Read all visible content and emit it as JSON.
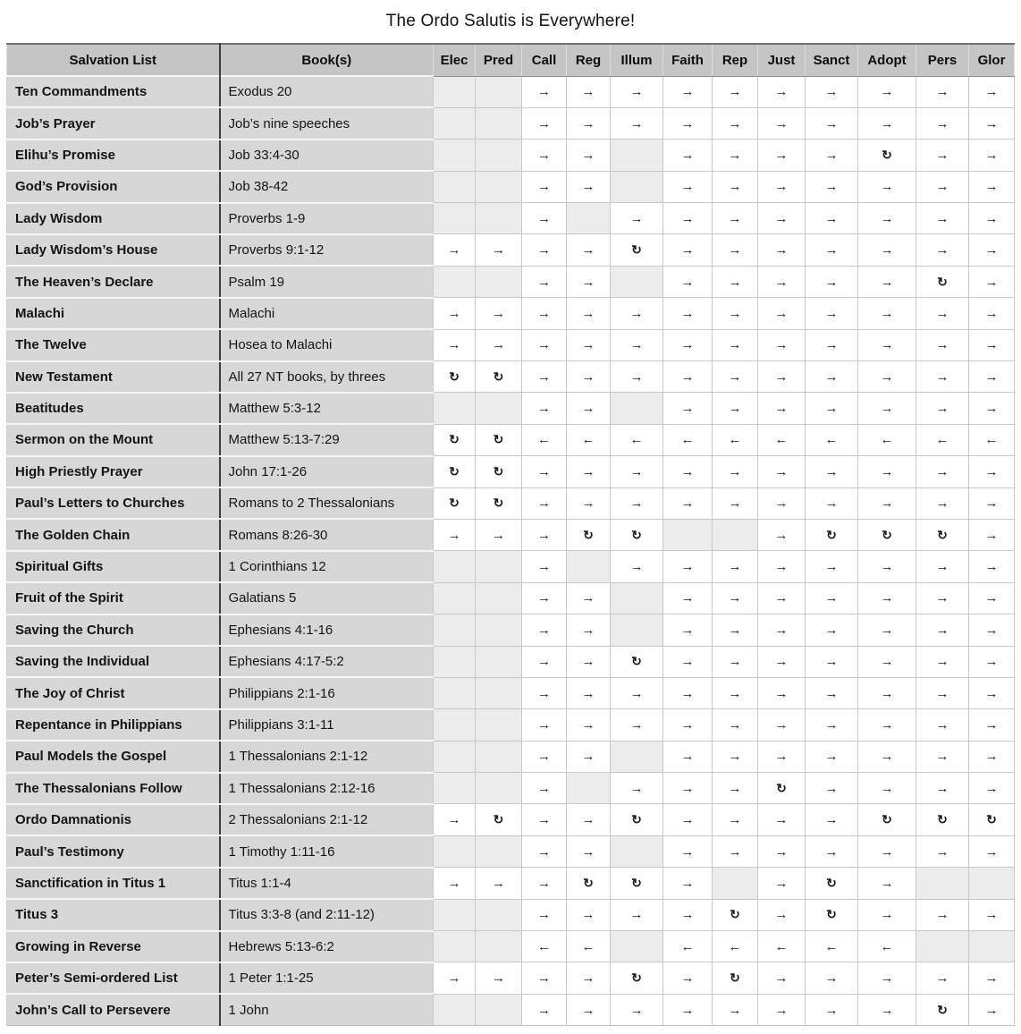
{
  "title": "The Ordo Salutis is Everywhere!",
  "colors": {
    "header_bg": "#c5c5c5",
    "label_bg": "#d7d7d7",
    "empty_cell_bg": "#ececec",
    "filled_cell_bg": "#ffffff",
    "grid_line": "#c8c8c8",
    "dark_divider": "#3d3d3d",
    "text": "#111111"
  },
  "symbols": {
    "forward": "→",
    "backward": "←",
    "loop": "↻",
    "empty": ""
  },
  "table": {
    "headers": [
      "Salvation List",
      "Book(s)",
      "Elec",
      "Pred",
      "Call",
      "Reg",
      "Illum",
      "Faith",
      "Rep",
      "Just",
      "Sanct",
      "Adopt",
      "Pers",
      "Glor"
    ],
    "stage_keys": [
      "elec",
      "pred",
      "call",
      "reg",
      "illum",
      "faith",
      "rep",
      "just",
      "sanct",
      "adopt",
      "pers",
      "glor"
    ],
    "rows": [
      {
        "name": "Ten Commandments",
        "books": "Exodus 20",
        "cells": [
          "",
          "",
          "→",
          "→",
          "→",
          "→",
          "→",
          "→",
          "→",
          "→",
          "→",
          "→"
        ]
      },
      {
        "name": "Job’s Prayer",
        "books": "Job’s nine speeches",
        "cells": [
          "",
          "",
          "→",
          "→",
          "→",
          "→",
          "→",
          "→",
          "→",
          "→",
          "→",
          "→"
        ]
      },
      {
        "name": "Elihu’s Promise",
        "books": "Job 33:4-30",
        "cells": [
          "",
          "",
          "→",
          "→",
          "",
          "→",
          "→",
          "→",
          "→",
          "↻",
          "→",
          "→"
        ]
      },
      {
        "name": "God’s Provision",
        "books": "Job 38-42",
        "cells": [
          "",
          "",
          "→",
          "→",
          "",
          "→",
          "→",
          "→",
          "→",
          "→",
          "→",
          "→"
        ]
      },
      {
        "name": "Lady Wisdom",
        "books": "Proverbs 1-9",
        "cells": [
          "",
          "",
          "→",
          "",
          "→",
          "→",
          "→",
          "→",
          "→",
          "→",
          "→",
          "→"
        ]
      },
      {
        "name": "Lady Wisdom’s House",
        "books": "Proverbs 9:1-12",
        "cells": [
          "→",
          "→",
          "→",
          "→",
          "↻",
          "→",
          "→",
          "→",
          "→",
          "→",
          "→",
          "→"
        ]
      },
      {
        "name": "The Heaven’s Declare",
        "books": "Psalm 19",
        "cells": [
          "",
          "",
          "→",
          "→",
          "",
          "→",
          "→",
          "→",
          "→",
          "→",
          "↻",
          "→"
        ]
      },
      {
        "name": "Malachi",
        "books": "Malachi",
        "cells": [
          "→",
          "→",
          "→",
          "→",
          "→",
          "→",
          "→",
          "→",
          "→",
          "→",
          "→",
          "→"
        ]
      },
      {
        "name": "The Twelve",
        "books": "Hosea to Malachi",
        "cells": [
          "→",
          "→",
          "→",
          "→",
          "→",
          "→",
          "→",
          "→",
          "→",
          "→",
          "→",
          "→"
        ]
      },
      {
        "name": "New Testament",
        "books": "All 27 NT books, by threes",
        "cells": [
          "↻",
          "↻",
          "→",
          "→",
          "→",
          "→",
          "→",
          "→",
          "→",
          "→",
          "→",
          "→"
        ]
      },
      {
        "name": "Beatitudes",
        "books": "Matthew 5:3-12",
        "cells": [
          "",
          "",
          "→",
          "→",
          "",
          "→",
          "→",
          "→",
          "→",
          "→",
          "→",
          "→"
        ]
      },
      {
        "name": "Sermon on the Mount",
        "books": "Matthew 5:13-7:29",
        "cells": [
          "↻",
          "↻",
          "←",
          "←",
          "←",
          "←",
          "←",
          "←",
          "←",
          "←",
          "←",
          "←"
        ]
      },
      {
        "name": "High Priestly Prayer",
        "books": "John 17:1-26",
        "cells": [
          "↻",
          "↻",
          "→",
          "→",
          "→",
          "→",
          "→",
          "→",
          "→",
          "→",
          "→",
          "→"
        ]
      },
      {
        "name": "Paul’s Letters to Churches",
        "books": "Romans to 2 Thessalonians",
        "cells": [
          "↻",
          "↻",
          "→",
          "→",
          "→",
          "→",
          "→",
          "→",
          "→",
          "→",
          "→",
          "→"
        ]
      },
      {
        "name": "The Golden Chain",
        "books": "Romans 8:26-30",
        "cells": [
          "→",
          "→",
          "→",
          "↻",
          "↻",
          "",
          "",
          "→",
          "↻",
          "↻",
          "↻",
          "→"
        ]
      },
      {
        "name": "Spiritual Gifts",
        "books": "1 Corinthians 12",
        "cells": [
          "",
          "",
          "→",
          "",
          "→",
          "→",
          "→",
          "→",
          "→",
          "→",
          "→",
          "→"
        ]
      },
      {
        "name": "Fruit of the Spirit",
        "books": "Galatians 5",
        "cells": [
          "",
          "",
          "→",
          "→",
          "",
          "→",
          "→",
          "→",
          "→",
          "→",
          "→",
          "→"
        ]
      },
      {
        "name": "Saving the Church",
        "books": "Ephesians 4:1-16",
        "cells": [
          "",
          "",
          "→",
          "→",
          "",
          "→",
          "→",
          "→",
          "→",
          "→",
          "→",
          "→"
        ]
      },
      {
        "name": "Saving the Individual",
        "books": "Ephesians 4:17-5:2",
        "cells": [
          "",
          "",
          "→",
          "→",
          "↻",
          "→",
          "→",
          "→",
          "→",
          "→",
          "→",
          "→"
        ]
      },
      {
        "name": "The Joy of Christ",
        "books": "Philippians 2:1-16",
        "cells": [
          "",
          "",
          "→",
          "→",
          "→",
          "→",
          "→",
          "→",
          "→",
          "→",
          "→",
          "→"
        ]
      },
      {
        "name": "Repentance in Philippians",
        "books": "Philippians 3:1-11",
        "cells": [
          "",
          "",
          "→",
          "→",
          "→",
          "→",
          "→",
          "→",
          "→",
          "→",
          "→",
          "→"
        ]
      },
      {
        "name": "Paul Models the Gospel",
        "books": "1 Thessalonians 2:1-12",
        "cells": [
          "",
          "",
          "→",
          "→",
          "",
          "→",
          "→",
          "→",
          "→",
          "→",
          "→",
          "→"
        ]
      },
      {
        "name": "The Thessalonians Follow",
        "books": "1 Thessalonians 2:12-16",
        "cells": [
          "",
          "",
          "→",
          "",
          "→",
          "→",
          "→",
          "↻",
          "→",
          "→",
          "→",
          "→"
        ]
      },
      {
        "name": "Ordo Damnationis",
        "books": "2 Thessalonians 2:1-12",
        "cells": [
          "→",
          "↻",
          "→",
          "→",
          "↻",
          "→",
          "→",
          "→",
          "→",
          "↻",
          "↻",
          "↻"
        ]
      },
      {
        "name": "Paul’s Testimony",
        "books": "1 Timothy 1:11-16",
        "cells": [
          "",
          "",
          "→",
          "→",
          "",
          "→",
          "→",
          "→",
          "→",
          "→",
          "→",
          "→"
        ]
      },
      {
        "name": "Sanctification in Titus 1",
        "books": "Titus 1:1-4",
        "cells": [
          "→",
          "→",
          "→",
          "↻",
          "↻",
          "→",
          "",
          "→",
          "↻",
          "→",
          "",
          ""
        ]
      },
      {
        "name": "Titus 3",
        "books": "Titus 3:3-8 (and 2:11-12)",
        "cells": [
          "",
          "",
          "→",
          "→",
          "→",
          "→",
          "↻",
          "→",
          "↻",
          "→",
          "→",
          "→"
        ]
      },
      {
        "name": "Growing in Reverse",
        "books": "Hebrews 5:13-6:2",
        "cells": [
          "",
          "",
          "←",
          "←",
          "",
          "←",
          "←",
          "←",
          "←",
          "←",
          "",
          ""
        ]
      },
      {
        "name": "Peter’s Semi-ordered List",
        "books": "1 Peter 1:1-25",
        "cells": [
          "→",
          "→",
          "→",
          "→",
          "↻",
          "→",
          "↻",
          "→",
          "→",
          "→",
          "→",
          "→"
        ]
      },
      {
        "name": "John’s Call to Persevere",
        "books": "1 John",
        "cells": [
          "",
          "",
          "→",
          "→",
          "→",
          "→",
          "→",
          "→",
          "→",
          "→",
          "↻",
          "→"
        ]
      }
    ]
  }
}
